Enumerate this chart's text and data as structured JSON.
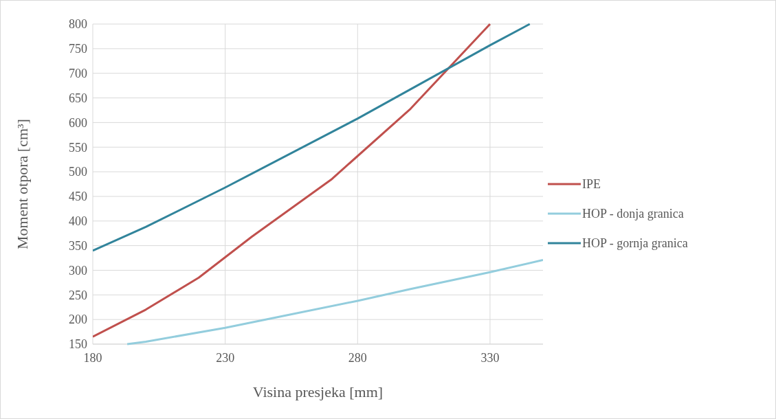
{
  "chart_data": {
    "type": "line",
    "xlabel": "Visina presjeka [mm]",
    "ylabel": "Moment otpora [cm³]",
    "xlim": [
      180,
      350
    ],
    "xticks": [
      180,
      230,
      280,
      330
    ],
    "ylim": [
      150,
      800
    ],
    "yticks": [
      150,
      200,
      250,
      300,
      350,
      400,
      450,
      500,
      550,
      600,
      650,
      700,
      750,
      800
    ],
    "grid": true,
    "legend": "right",
    "marker": "none",
    "line_style": "solid",
    "series": [
      {
        "name": "IPE",
        "color": "#c0504d",
        "x": [
          180,
          200,
          220,
          240,
          270,
          300,
          330
        ],
        "values": [
          165,
          220,
          285,
          368,
          484,
          628,
          800
        ]
      },
      {
        "name": "HOP - donja granica",
        "color": "#93cddd",
        "x": [
          193,
          200,
          230,
          250,
          280,
          300,
          330,
          350
        ],
        "values": [
          150,
          155,
          183,
          205,
          238,
          262,
          296,
          321
        ]
      },
      {
        "name": "HOP - gornja granica",
        "color": "#31849b",
        "x": [
          180,
          200,
          230,
          280,
          330,
          345
        ],
        "values": [
          340,
          388,
          468,
          608,
          757,
          800
        ]
      }
    ]
  }
}
